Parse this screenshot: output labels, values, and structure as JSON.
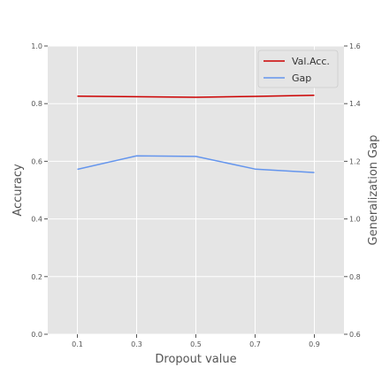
{
  "chart_data": {
    "type": "line",
    "title": "",
    "xlabel": "Dropout value",
    "ylabel_left": "Accuracy",
    "ylabel_right": "Generalization Gap",
    "x": [
      0.1,
      0.3,
      0.5,
      0.7,
      0.9
    ],
    "x_ticks": [
      "0.1",
      "0.3",
      "0.5",
      "0.7",
      "0.9"
    ],
    "xlim": [
      0.0,
      1.0
    ],
    "ylim_left": [
      0.0,
      1.0
    ],
    "ylim_right": [
      0.6,
      1.6
    ],
    "y_ticks_left": [
      "0.0",
      "0.2",
      "0.4",
      "0.6",
      "0.8",
      "1.0"
    ],
    "y_ticks_right": [
      "0.6",
      "0.8",
      "1.0",
      "1.2",
      "1.4",
      "1.6"
    ],
    "grid": true,
    "legend_position": "top-right",
    "series": [
      {
        "name": "Val.Acc.",
        "axis": "left",
        "color": "#cc0000",
        "values": [
          0.826,
          0.824,
          0.822,
          0.825,
          0.829
        ]
      },
      {
        "name": "Gap",
        "axis": "right",
        "color": "#6495ed",
        "values": [
          1.172,
          1.219,
          1.217,
          1.173,
          1.161
        ]
      }
    ]
  }
}
